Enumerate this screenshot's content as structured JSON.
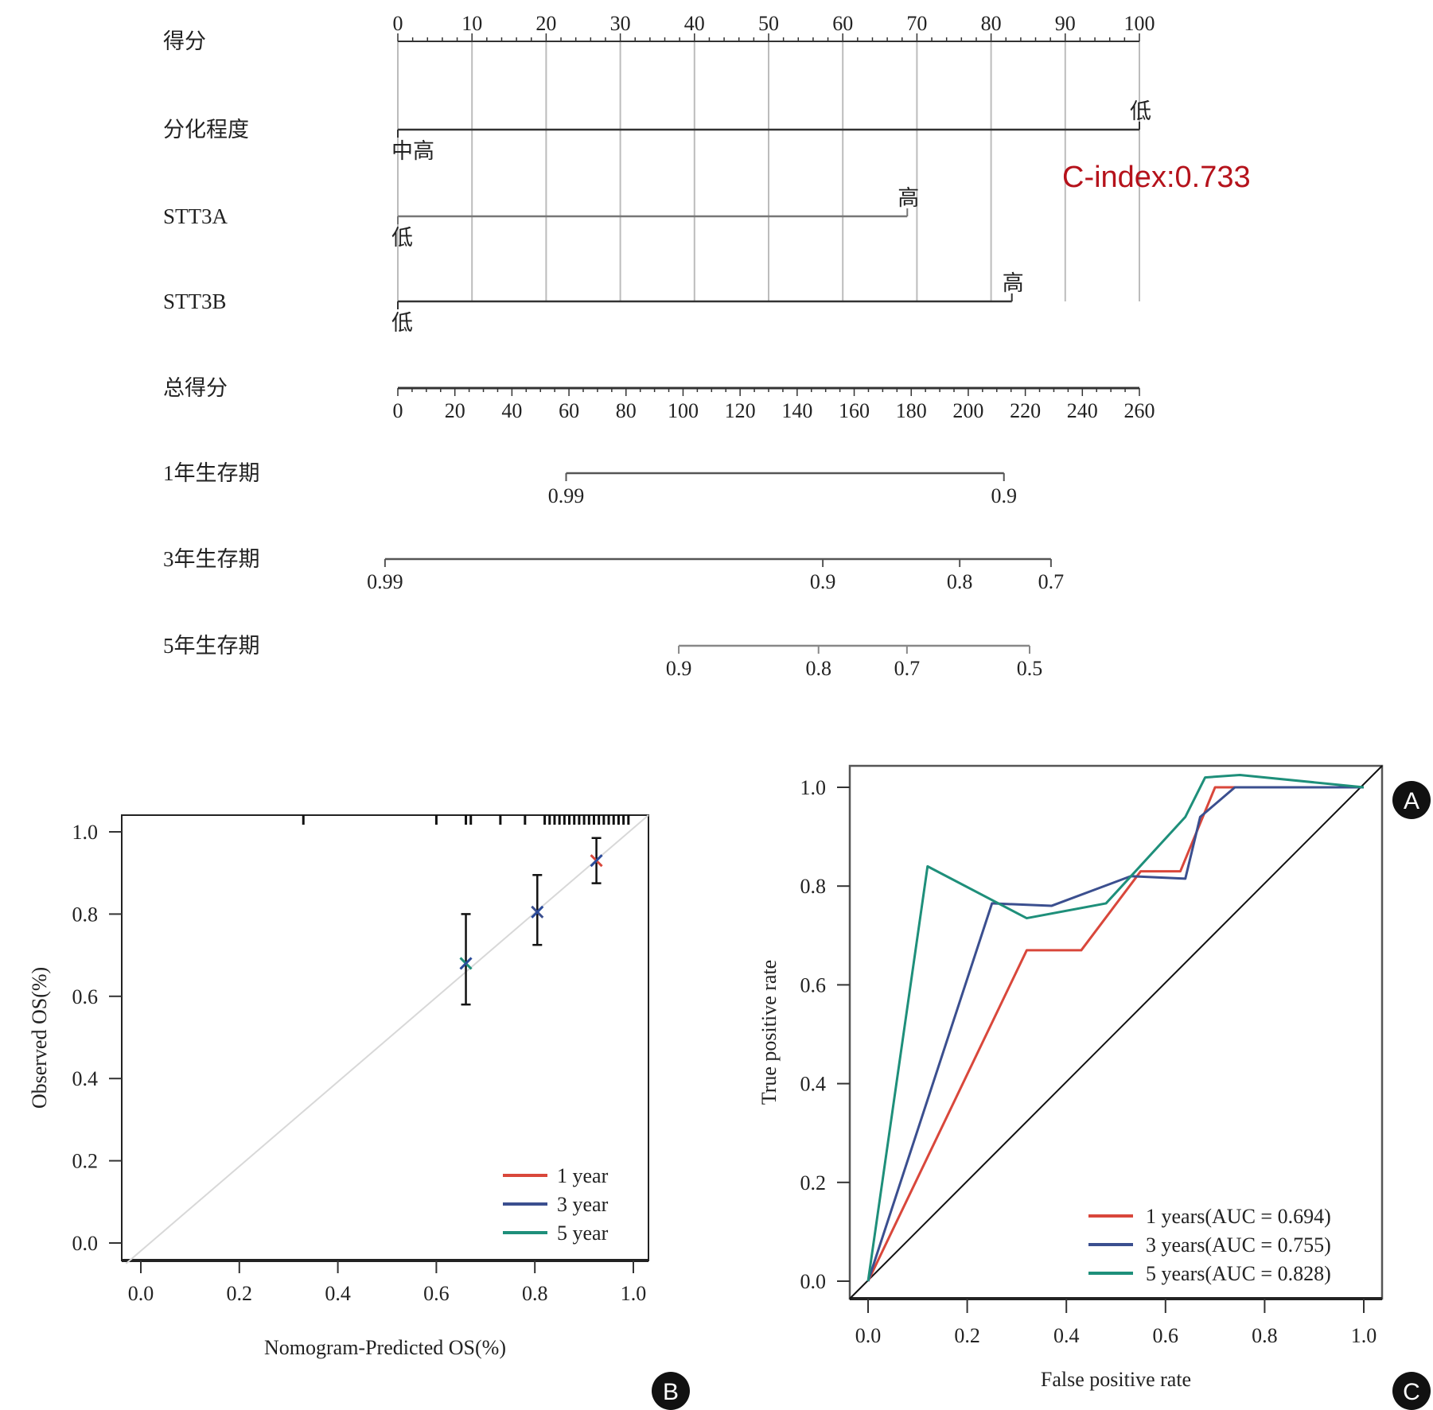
{
  "panels": {
    "A": "A",
    "B": "B",
    "C": "C"
  },
  "chart_data": [
    {
      "type": "nomogram",
      "panel": "A",
      "c_index_label": "C-index:0.733",
      "points_axis": {
        "label": "得分",
        "range": [
          0,
          100
        ],
        "ticks": [
          0,
          10,
          20,
          30,
          40,
          50,
          60,
          70,
          80,
          90,
          100
        ]
      },
      "variables": [
        {
          "label": "分化程度",
          "levels": [
            {
              "name": "中高",
              "points": 0
            },
            {
              "name": "低",
              "points": 100
            }
          ]
        },
        {
          "label": "STT3A",
          "levels": [
            {
              "name": "低",
              "points": 0
            },
            {
              "name": "高",
              "points": 68.7
            }
          ]
        },
        {
          "label": "STT3B",
          "levels": [
            {
              "name": "低",
              "points": 0
            },
            {
              "name": "高",
              "points": 82.8
            }
          ]
        }
      ],
      "total_points_axis": {
        "label": "总得分",
        "range": [
          0,
          260
        ],
        "ticks": [
          0,
          20,
          40,
          60,
          80,
          100,
          120,
          140,
          160,
          180,
          200,
          220,
          240,
          260
        ]
      },
      "survival_axes": [
        {
          "label": "1年生存期",
          "ticks": [
            {
              "value": "0.99",
              "total_points": 59
            },
            {
              "value": "0.9",
              "total_points": 212.5
            }
          ]
        },
        {
          "label": "3年生存期",
          "ticks": [
            {
              "value": "0.99",
              "total_points": -4.5
            },
            {
              "value": "0.9",
              "total_points": 149
            },
            {
              "value": "0.8",
              "total_points": 197
            },
            {
              "value": "0.7",
              "total_points": 229
            }
          ]
        },
        {
          "label": "5年生存期",
          "ticks": [
            {
              "value": "0.9",
              "total_points": 98.5
            },
            {
              "value": "0.8",
              "total_points": 147.5
            },
            {
              "value": "0.7",
              "total_points": 178.5
            },
            {
              "value": "0.5",
              "total_points": 221.5
            }
          ]
        }
      ]
    },
    {
      "type": "scatter",
      "panel": "B",
      "title": "",
      "xlabel": "Nomogram-Predicted OS(%)",
      "ylabel": "Observed OS(%)",
      "xlim": [
        0,
        1
      ],
      "ylim": [
        0,
        1
      ],
      "xticks": [
        "0.0",
        "0.2",
        "0.4",
        "0.6",
        "0.8",
        "1.0"
      ],
      "yticks": [
        "0.0",
        "0.2",
        "0.4",
        "0.6",
        "0.8",
        "1.0"
      ],
      "reference_line": "diagonal",
      "series": [
        {
          "name": "1 year",
          "color": "#d9473b",
          "points": [
            {
              "x": 0.925,
              "y": 0.93,
              "lo": 0.875,
              "hi": 0.985
            }
          ]
        },
        {
          "name": "3 year",
          "color": "#3b4f8f",
          "points": [
            {
              "x": 0.805,
              "y": 0.805,
              "lo": 0.725,
              "hi": 0.895
            }
          ]
        },
        {
          "name": "5 year",
          "color": "#1e8f7a",
          "points": [
            {
              "x": 0.66,
              "y": 0.68,
              "lo": 0.58,
              "hi": 0.8
            }
          ]
        }
      ],
      "rug_x": [
        0.33,
        0.6,
        0.66,
        0.67,
        0.73,
        0.78,
        0.82,
        0.83,
        0.84,
        0.85,
        0.86,
        0.87,
        0.88,
        0.89,
        0.9,
        0.91,
        0.92,
        0.93,
        0.94,
        0.95,
        0.96,
        0.97,
        0.98,
        0.99
      ],
      "legend": {
        "placement": "bottom-right",
        "entries": [
          "1 year",
          "3 year",
          "5 year"
        ]
      }
    },
    {
      "type": "line",
      "panel": "C",
      "title": "",
      "xlabel": "False positive rate",
      "ylabel": "True positive rate",
      "xlim": [
        0,
        1
      ],
      "ylim": [
        0,
        1
      ],
      "xticks": [
        "0.0",
        "0.2",
        "0.4",
        "0.6",
        "0.8",
        "1.0"
      ],
      "yticks": [
        "0.0",
        "0.2",
        "0.4",
        "0.6",
        "0.8",
        "1.0"
      ],
      "reference_line": "diagonal",
      "series": [
        {
          "name": "1 years(AUC = 0.694)",
          "color": "#d9473b",
          "x": [
            0,
            0.32,
            0.43,
            0.55,
            0.63,
            0.7,
            1.0
          ],
          "y": [
            0,
            0.67,
            0.67,
            0.83,
            0.83,
            1.0,
            1.0
          ]
        },
        {
          "name": "3 years(AUC = 0.755)",
          "color": "#3b4f8f",
          "x": [
            0,
            0.25,
            0.37,
            0.53,
            0.64,
            0.67,
            0.74,
            1.0
          ],
          "y": [
            0,
            0.765,
            0.76,
            0.82,
            0.815,
            0.94,
            1.0,
            1.0
          ]
        },
        {
          "name": "5 years(AUC = 0.828)",
          "color": "#1e8f7a",
          "x": [
            0,
            0.12,
            0.32,
            0.48,
            0.64,
            0.68,
            0.75,
            1.0
          ],
          "y": [
            0,
            0.84,
            0.735,
            0.765,
            0.94,
            1.02,
            1.025,
            1.0
          ]
        }
      ],
      "legend": {
        "placement": "bottom-right",
        "entries": [
          "1 years(AUC = 0.694)",
          "3 years(AUC = 0.755)",
          "5 years(AUC = 0.828)"
        ]
      }
    }
  ]
}
